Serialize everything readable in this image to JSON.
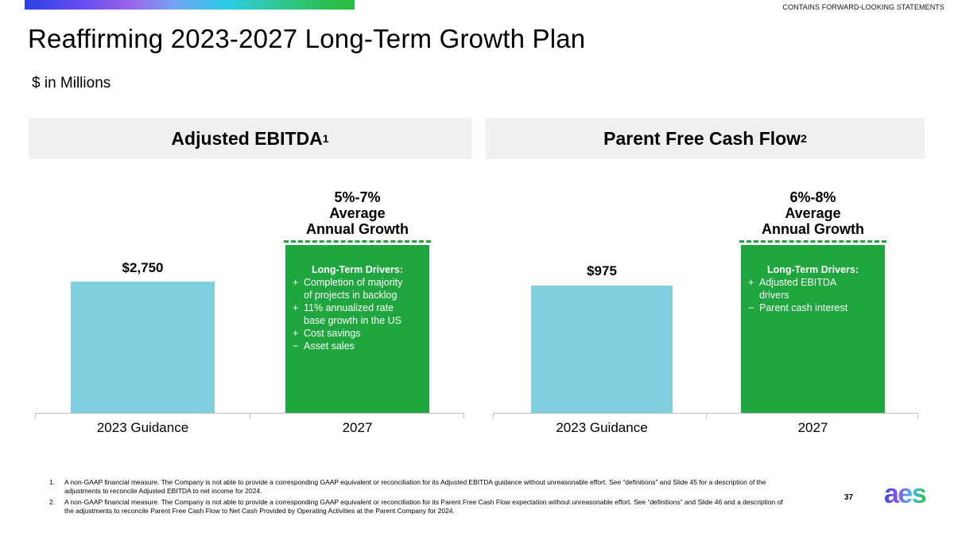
{
  "banner": {
    "disclaimer": "CONTAINS FORWARD-LOOKING STATEMENTS"
  },
  "title": "Reaffirming 2023-2027 Long-Term Growth Plan",
  "subtitle": "$ in Millions",
  "colors": {
    "green": "#1FA63E",
    "blue": "#7FCFE0",
    "header_bg": "#F0F0F0",
    "axis": "#BFBFBF",
    "brand_gradient": [
      "#2C3FE9",
      "#9C63EC",
      "#2BCBE6",
      "#24BD3F"
    ]
  },
  "charts": [
    {
      "header": "Adjusted EBITDA",
      "header_sup": "1",
      "current": {
        "value_label": "$2,750",
        "category": "2023 Guidance"
      },
      "future": {
        "growth_lines": [
          "5%-7%",
          "Average",
          "Annual Growth"
        ],
        "category": "2027",
        "drivers_title": "Long-Term Drivers:",
        "drivers": [
          {
            "sign": "+",
            "text": "Completion of majority\nof projects in backlog"
          },
          {
            "sign": "+",
            "text": "11% annualized rate\nbase growth in the US"
          },
          {
            "sign": "+",
            "text": "Cost savings"
          },
          {
            "sign": "−",
            "text": "Asset sales"
          }
        ]
      }
    },
    {
      "header": "Parent Free Cash Flow",
      "header_sup": "2",
      "current": {
        "value_label": "$975",
        "category": "2023 Guidance"
      },
      "future": {
        "growth_lines": [
          "6%-8%",
          "Average",
          "Annual Growth"
        ],
        "category": "2027",
        "drivers_title": "Long-Term Drivers:",
        "drivers": [
          {
            "sign": "+",
            "text": "Adjusted EBITDA\ndrivers"
          },
          {
            "sign": "−",
            "text": "Parent cash interest"
          }
        ]
      }
    }
  ],
  "chart_data": [
    {
      "type": "bar",
      "title": "Adjusted EBITDA",
      "footnote_ref": "1",
      "units": "$ in Millions",
      "categories": [
        "2023 Guidance",
        "2027"
      ],
      "series": [
        {
          "name": "Adjusted EBITDA",
          "values": [
            2750,
            null
          ]
        }
      ],
      "data_labels": [
        "$2,750",
        "5%-7% Average Annual Growth"
      ],
      "annotations": [
        "Long-Term Drivers: + Completion of majority of projects in backlog; + 11% annualized rate base growth in the US; + Cost savings; − Asset sales"
      ],
      "bar_colors": [
        "#7FCFE0",
        "#1FA63E"
      ],
      "grid": false,
      "legend": "none"
    },
    {
      "type": "bar",
      "title": "Parent Free Cash Flow",
      "footnote_ref": "2",
      "units": "$ in Millions",
      "categories": [
        "2023 Guidance",
        "2027"
      ],
      "series": [
        {
          "name": "Parent Free Cash Flow",
          "values": [
            975,
            null
          ]
        }
      ],
      "data_labels": [
        "$975",
        "6%-8% Average Annual Growth"
      ],
      "annotations": [
        "Long-Term Drivers: + Adjusted EBITDA drivers; − Parent cash interest"
      ],
      "bar_colors": [
        "#7FCFE0",
        "#1FA63E"
      ],
      "grid": false,
      "legend": "none"
    }
  ],
  "footnotes": [
    {
      "num": "1.",
      "text": "A non-GAAP financial measure. The Company is not able to provide a corresponding GAAP equivalent or reconciliation for its Adjusted EBITDA guidance without unreasonable effort. See “definitions” and Slide 45 for a description of the\nadjustments to reconcile Adjusted EBITDA to net income for 2024."
    },
    {
      "num": "2.",
      "text": "A non-GAAP financial measure.  The Company is not able to provide a corresponding GAAP equivalent or reconciliation for its Parent Free Cash Flow expectation without unreasonable effort. See “definitions” and Slide 46 and a description of\nthe adjustments to reconcile Parent Free Cash Flow to Net Cash Provided by Operating Activities at the Parent Company for 2024."
    }
  ],
  "page_number": "37",
  "logo_text": "aes"
}
